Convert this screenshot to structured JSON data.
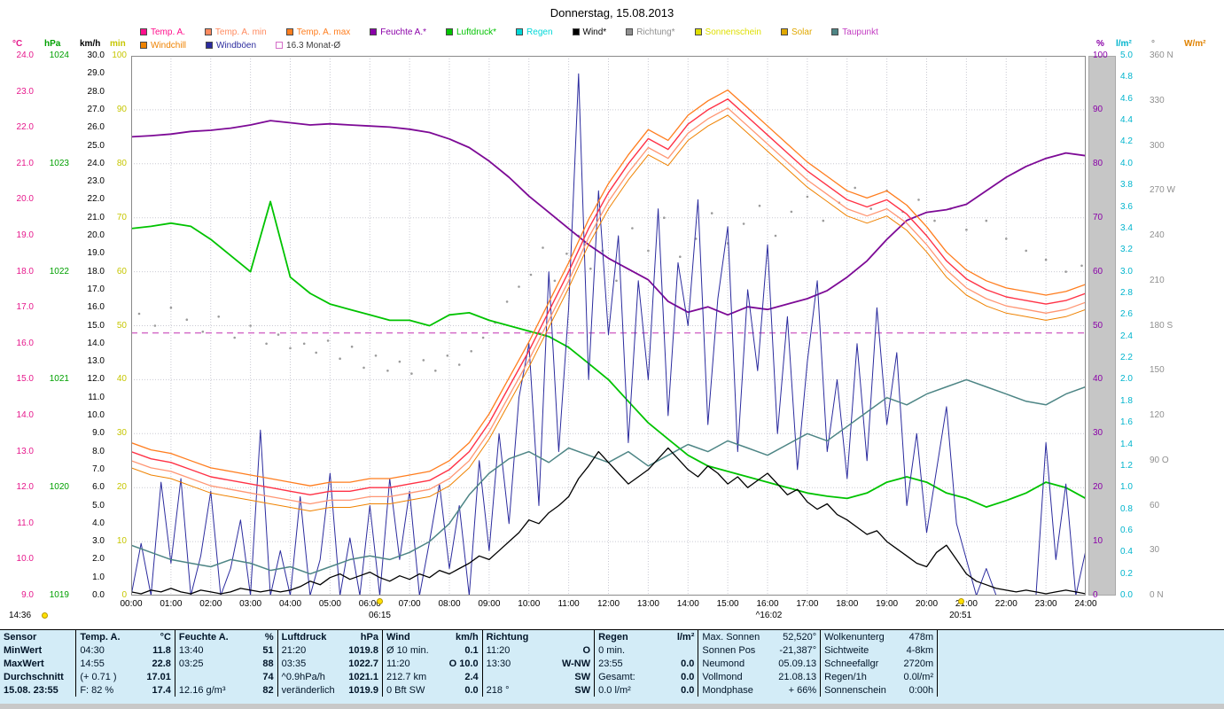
{
  "title": "Donnerstag, 15.08.2013",
  "legend": {
    "row1": [
      {
        "label": "Temp. A.",
        "color": "#ff0f8c"
      },
      {
        "label": "Temp. A. min",
        "color": "#ff8a5f"
      },
      {
        "label": "Temp. A. max",
        "color": "#ff7d1e"
      },
      {
        "label": "Feuchte A.*",
        "color": "#8a00a8"
      },
      {
        "label": "Luftdruck*",
        "color": "#00c300"
      },
      {
        "label": "Regen",
        "color": "#00d7d7"
      },
      {
        "label": "Wind*",
        "color": "#000000"
      },
      {
        "label": "Richtung*",
        "color": "#8f8f8f"
      },
      {
        "label": "Sonnenschein",
        "color": "#dede00"
      },
      {
        "label": "Solar",
        "color": "#e0a800"
      },
      {
        "label": "Taupunkt",
        "color": "#c23cc2",
        "box": "#4d8585"
      }
    ],
    "row2": [
      {
        "label": "Windchill",
        "color": "#ef8200"
      },
      {
        "label": "Windböen",
        "color": "#2b2b9e"
      },
      {
        "label": "16.3 Monat-Ø",
        "color": "#3c3c3c",
        "box": "#d46ec8",
        "outline": true
      }
    ]
  },
  "axes": {
    "left": [
      {
        "id": "temp",
        "header": "°C",
        "color": "#e6198c",
        "min": 9,
        "max": 24,
        "step": 1,
        "dec": 1
      },
      {
        "id": "hpa",
        "header": "hPa",
        "color": "#00a000",
        "min": 1019,
        "max": 1024,
        "step": 1,
        "dec": 0
      },
      {
        "id": "wind",
        "header": "km/h",
        "color": "#000000",
        "min": 0,
        "max": 30,
        "step": 1,
        "dec": 1
      },
      {
        "id": "sun",
        "header": "min",
        "color": "#c6c600",
        "min": 0,
        "max": 100,
        "step": 10,
        "dec": 0
      }
    ],
    "right": [
      {
        "id": "pct",
        "header": "%",
        "color": "#8a00a8",
        "min": 0,
        "max": 100,
        "step": 10,
        "dec": 0
      },
      {
        "id": "rain",
        "header": "l/m²",
        "color": "#00b4cd",
        "min": 0,
        "max": 5,
        "step": 0.2,
        "dec": 1
      },
      {
        "id": "dir",
        "header": "°",
        "color": "#8f8f8f",
        "labels": [
          "360 N",
          "330",
          "300",
          "270 W",
          "240",
          "210",
          "180 S",
          "150",
          "120",
          "90 O",
          "60",
          "30",
          "0 N"
        ]
      },
      {
        "id": "solar",
        "header": "W/m²",
        "color": "#e08200",
        "labels": []
      }
    ]
  },
  "x_axis": {
    "labels": [
      "00:00",
      "01:00",
      "02:00",
      "03:00",
      "04:00",
      "05:00",
      "06:00",
      "07:00",
      "08:00",
      "09:00",
      "10:00",
      "11:00",
      "12:00",
      "13:00",
      "14:00",
      "15:00",
      "16:00",
      "17:00",
      "18:00",
      "19:00",
      "20:00",
      "21:00",
      "22:00",
      "23:00",
      "24:00"
    ]
  },
  "markers": {
    "corner_time": "14:36",
    "sunrise": "06:15",
    "event": "^16:02",
    "sunset": "20:51"
  },
  "chart_data": {
    "type": "line",
    "title": "Donnerstag, 15.08.2013",
    "x_unit": "hours",
    "x_range": [
      0,
      24
    ],
    "grid": true,
    "monthly_avg_temp": 16.3,
    "axes_scales": {
      "temp": {
        "min": 9,
        "max": 24,
        "unit": "°C"
      },
      "hpa": {
        "min": 1019,
        "max": 1024,
        "unit": "hPa"
      },
      "wind": {
        "min": 0,
        "max": 30,
        "unit": "km/h"
      },
      "pct": {
        "min": 0,
        "max": 100,
        "unit": "%"
      },
      "rain": {
        "min": 0,
        "max": 5,
        "unit": "l/m²"
      },
      "sun": {
        "min": 0,
        "max": 100,
        "unit": "min"
      },
      "solar": {
        "min": 0,
        "max": 1000,
        "unit": "W/m²"
      },
      "dir": {
        "min": 0,
        "max": 360,
        "unit": "°"
      }
    },
    "series": [
      {
        "name": "Richtung",
        "axis": "dir",
        "color": "#9b9b9b",
        "type": "dots",
        "points": [
          [
            0.2,
            188
          ],
          [
            0.6,
            180
          ],
          [
            1.0,
            192
          ],
          [
            1.4,
            184
          ],
          [
            1.8,
            176
          ],
          [
            2.2,
            186
          ],
          [
            2.6,
            172
          ],
          [
            3.0,
            180
          ],
          [
            3.4,
            168
          ],
          [
            3.7,
            174
          ],
          [
            4.0,
            165
          ],
          [
            4.35,
            168
          ],
          [
            4.65,
            162
          ],
          [
            4.95,
            170
          ],
          [
            5.25,
            158
          ],
          [
            5.55,
            166
          ],
          [
            5.85,
            152
          ],
          [
            6.15,
            160
          ],
          [
            6.45,
            150
          ],
          [
            6.75,
            156
          ],
          [
            7.05,
            148
          ],
          [
            7.35,
            157
          ],
          [
            7.65,
            150
          ],
          [
            7.95,
            160
          ],
          [
            8.25,
            154
          ],
          [
            8.55,
            163
          ],
          [
            8.85,
            172
          ],
          [
            9.15,
            182
          ],
          [
            9.45,
            196
          ],
          [
            9.75,
            206
          ],
          [
            10.05,
            214
          ],
          [
            10.35,
            232
          ],
          [
            10.65,
            210
          ],
          [
            10.95,
            228
          ],
          [
            11.25,
            240
          ],
          [
            11.55,
            218
          ],
          [
            11.85,
            230
          ],
          [
            12.2,
            210
          ],
          [
            12.6,
            245
          ],
          [
            13.0,
            230
          ],
          [
            13.4,
            252
          ],
          [
            13.8,
            226
          ],
          [
            14.2,
            238
          ],
          [
            14.6,
            255
          ],
          [
            15.0,
            235
          ],
          [
            15.4,
            248
          ],
          [
            15.8,
            260
          ],
          [
            16.2,
            240
          ],
          [
            16.6,
            256
          ],
          [
            17.0,
            266
          ],
          [
            17.4,
            250
          ],
          [
            17.8,
            262
          ],
          [
            18.2,
            272
          ],
          [
            18.6,
            258
          ],
          [
            19.0,
            270
          ],
          [
            19.4,
            256
          ],
          [
            19.8,
            264
          ],
          [
            20.2,
            250
          ],
          [
            20.6,
            258
          ],
          [
            21.0,
            244
          ],
          [
            21.5,
            250
          ],
          [
            22.0,
            238
          ],
          [
            22.5,
            230
          ],
          [
            23.0,
            224
          ],
          [
            23.5,
            216
          ],
          [
            23.9,
            220
          ]
        ]
      },
      {
        "name": "Solar",
        "axis": "solar",
        "color": "#e0a800",
        "type": "line",
        "width": 1,
        "step_h": 24,
        "values": [
          0,
          0
        ]
      },
      {
        "name": "Sonnenschein",
        "axis": "sun",
        "color": "#dede00",
        "type": "line",
        "width": 1,
        "step_h": 24,
        "values": [
          0,
          0
        ]
      },
      {
        "name": "Regen",
        "axis": "rain",
        "color": "#00d7d7",
        "type": "line",
        "width": 2,
        "step_h": 24,
        "values": [
          0,
          0
        ]
      },
      {
        "name": "Luftdruck",
        "axis": "hpa",
        "color": "#00c300",
        "type": "line",
        "width": 1.8,
        "step_h": 0.5,
        "values": [
          1022.4,
          1022.42,
          1022.45,
          1022.42,
          1022.3,
          1022.15,
          1022.0,
          1022.65,
          1021.95,
          1021.8,
          1021.7,
          1021.65,
          1021.6,
          1021.55,
          1021.55,
          1021.5,
          1021.6,
          1021.62,
          1021.55,
          1021.5,
          1021.45,
          1021.4,
          1021.3,
          1021.15,
          1021.0,
          1020.8,
          1020.6,
          1020.45,
          1020.3,
          1020.2,
          1020.15,
          1020.1,
          1020.05,
          1020.0,
          1019.95,
          1019.92,
          1019.9,
          1019.95,
          1020.05,
          1020.1,
          1020.05,
          1019.95,
          1019.9,
          1019.82,
          1019.88,
          1019.95,
          1020.05,
          1020.0,
          1019.9
        ]
      },
      {
        "name": "Feuchte A.",
        "axis": "pct",
        "color": "#7d0a96",
        "type": "line",
        "width": 1.8,
        "step_h": 0.5,
        "values": [
          85,
          85.2,
          85.5,
          86,
          86.2,
          86.6,
          87.2,
          88,
          87.6,
          87.2,
          87.4,
          87.2,
          87,
          86.8,
          86.4,
          85.8,
          84.6,
          83,
          80.5,
          77.5,
          74,
          71,
          68,
          65,
          62.5,
          60.5,
          58.5,
          54.5,
          52.5,
          53.5,
          52,
          53.5,
          53,
          54,
          55,
          56.5,
          59,
          62,
          66,
          69.5,
          71,
          71.5,
          72.5,
          75,
          77.5,
          79.5,
          81,
          82,
          81.5
        ]
      },
      {
        "name": "Windböen",
        "axis": "wind",
        "color": "#2b2b9e",
        "type": "line",
        "width": 1,
        "step_h": 0.25,
        "values": [
          0,
          2.9,
          0,
          6.3,
          1.8,
          6.5,
          0,
          2.2,
          5.8,
          0,
          1.5,
          4.2,
          0,
          9.2,
          0,
          2.5,
          0,
          5.5,
          0,
          2.0,
          6.8,
          0,
          3.2,
          0,
          5.0,
          0,
          6.5,
          2.0,
          5.8,
          0,
          3.0,
          6.2,
          1.5,
          5.0,
          0,
          7.5,
          2.5,
          9.0,
          4.0,
          11.0,
          14.0,
          5.0,
          18.0,
          8.0,
          16.0,
          29.0,
          12.0,
          22.5,
          14.5,
          20.0,
          8.5,
          17.5,
          12.0,
          21.5,
          10.0,
          18.5,
          15.0,
          22.0,
          9.5,
          16.5,
          20.5,
          8.0,
          17.0,
          12.5,
          19.5,
          9.0,
          15.5,
          7.0,
          13.0,
          17.5,
          8.0,
          12.0,
          6.5,
          14.0,
          7.5,
          16.0,
          9.5,
          13.5,
          5.0,
          9.0,
          3.5,
          7.0,
          10.5,
          4.0,
          2.0,
          0,
          1.5,
          0,
          0,
          0,
          0,
          0,
          8.5,
          2.0,
          6.2,
          0,
          2.5
        ]
      },
      {
        "name": "Taupunkt",
        "axis": "temp",
        "color": "#4d8585",
        "type": "line",
        "width": 1.5,
        "step_h": 0.5,
        "values": [
          10.4,
          10.2,
          10.0,
          9.9,
          9.8,
          10.0,
          9.9,
          9.7,
          9.8,
          9.6,
          9.8,
          10.0,
          10.1,
          10.0,
          10.2,
          10.5,
          11.0,
          11.8,
          12.4,
          12.8,
          13.0,
          12.7,
          13.1,
          12.9,
          12.7,
          13.0,
          12.6,
          12.9,
          13.2,
          13.0,
          13.3,
          13.1,
          12.9,
          13.2,
          13.5,
          13.3,
          13.7,
          14.1,
          14.5,
          14.3,
          14.6,
          14.8,
          15.0,
          14.8,
          14.6,
          14.4,
          14.3,
          14.6,
          14.8
        ]
      },
      {
        "name": "Wind",
        "axis": "wind",
        "color": "#000000",
        "type": "line",
        "width": 1.3,
        "step_h": 0.25,
        "values": [
          0.2,
          0.1,
          0.3,
          0.2,
          0.4,
          0.2,
          0.1,
          0.3,
          0.2,
          0.1,
          0.2,
          0.4,
          0.3,
          0.2,
          0.3,
          0.2,
          0.3,
          0.5,
          0.8,
          0.6,
          1.0,
          1.2,
          0.9,
          1.1,
          1.3,
          1.0,
          0.8,
          1.1,
          0.9,
          1.2,
          1.0,
          1.4,
          1.2,
          1.5,
          1.8,
          2.2,
          2.0,
          2.5,
          3.0,
          3.5,
          4.2,
          4.0,
          4.6,
          5.0,
          5.5,
          6.5,
          7.2,
          8.0,
          7.4,
          6.8,
          6.2,
          6.6,
          7.0,
          7.6,
          8.2,
          7.6,
          7.0,
          6.6,
          7.2,
          6.8,
          6.2,
          6.6,
          6.0,
          6.4,
          6.8,
          6.2,
          5.6,
          5.9,
          5.2,
          4.8,
          5.1,
          4.5,
          4.2,
          3.8,
          3.4,
          3.6,
          3.0,
          2.6,
          2.2,
          1.8,
          1.6,
          2.4,
          2.8,
          2.0,
          1.2,
          0.8,
          0.6,
          0.4,
          0.3,
          0.2,
          0.3,
          0.2,
          0.1,
          0.2,
          0.3,
          0.2,
          0.1
        ]
      },
      {
        "name": "Windchill",
        "axis": "temp",
        "color": "#ef8200",
        "type": "line",
        "width": 1,
        "step_h": 0.5,
        "ref": "Temp. A.",
        "offset": -0.45
      },
      {
        "name": "Temp. A. min",
        "axis": "temp",
        "color": "#ff9673",
        "type": "line",
        "width": 1.3,
        "step_h": 0.5,
        "ref": "Temp. A.",
        "offset": -0.25
      },
      {
        "name": "Temp. A. max",
        "axis": "temp",
        "color": "#ff7d1e",
        "type": "line",
        "width": 1.3,
        "step_h": 0.5,
        "ref": "Temp. A.",
        "offset": 0.25
      },
      {
        "name": "Temp. A.",
        "axis": "temp",
        "color": "#ff3246",
        "type": "line",
        "width": 1.4,
        "step_h": 0.5,
        "values": [
          13.0,
          12.8,
          12.7,
          12.5,
          12.3,
          12.2,
          12.1,
          12.0,
          11.9,
          11.8,
          11.9,
          11.9,
          12.0,
          12.0,
          12.1,
          12.2,
          12.5,
          13.0,
          13.8,
          14.8,
          15.8,
          16.9,
          18.0,
          19.2,
          20.2,
          21.0,
          21.7,
          21.4,
          22.1,
          22.5,
          22.8,
          22.3,
          21.8,
          21.3,
          20.8,
          20.4,
          20.0,
          19.8,
          20.0,
          19.6,
          19.0,
          18.3,
          17.8,
          17.5,
          17.3,
          17.2,
          17.1,
          17.2,
          17.4
        ]
      }
    ]
  },
  "table": {
    "row_headers": [
      "Sensor",
      "MinWert",
      "MaxWert",
      "Durchschnitt",
      "15.08. 23:55"
    ],
    "groups": [
      {
        "name": "Temp. A.",
        "unit": "°C",
        "rows": [
          [
            "04:30",
            "11.8"
          ],
          [
            "14:55",
            "22.8"
          ],
          [
            "(+ 0.71 )",
            "17.01"
          ],
          [
            "F: 82 %",
            "17.4"
          ]
        ]
      },
      {
        "name": "Feuchte A.",
        "unit": "%",
        "rows": [
          [
            "13:40",
            "51"
          ],
          [
            "03:25",
            "88"
          ],
          [
            "",
            "74"
          ],
          [
            "12.16 g/m³",
            "82"
          ]
        ]
      },
      {
        "name": "Luftdruck",
        "unit": "hPa",
        "rows": [
          [
            "21:20",
            "1019.8"
          ],
          [
            "03:35",
            "1022.7"
          ],
          [
            "^0.9hPa/h",
            "1021.1"
          ],
          [
            "veränderlich",
            "1019.9"
          ]
        ]
      },
      {
        "name": "Wind",
        "unit": "km/h",
        "rows": [
          [
            "Ø 10 min.",
            "0.1"
          ],
          [
            "11:20",
            "O 10.0"
          ],
          [
            "212.7 km",
            "2.4"
          ],
          [
            "0 Bft SW",
            "0.0"
          ]
        ]
      },
      {
        "name": "Richtung",
        "unit": "",
        "rows": [
          [
            "11:20",
            "O"
          ],
          [
            "13:30",
            "W-NW"
          ],
          [
            "",
            "SW"
          ],
          [
            "218 °",
            "SW"
          ]
        ]
      },
      {
        "name": "Regen",
        "unit": "l/m²",
        "rows": [
          [
            "0 min.",
            ""
          ],
          [
            "23:55",
            "0.0"
          ],
          [
            "Gesamt:",
            "0.0"
          ],
          [
            "0.0 l/m²",
            "0.0"
          ]
        ]
      }
    ],
    "info_columns": [
      [
        [
          "Max. Sonnen",
          "52,520°"
        ],
        [
          "Sonnen Pos",
          "-21,387°"
        ],
        [
          "Neumond",
          "05.09.13"
        ],
        [
          "Vollmond",
          "21.08.13"
        ],
        [
          "Mondphase",
          "+ 66%"
        ]
      ],
      [
        [
          "Wolkenunterg",
          "478m"
        ],
        [
          "Sichtweite",
          "4-8km"
        ],
        [
          "Schneefallgr",
          "2720m"
        ],
        [
          "Regen/1h",
          "0.0l/m²"
        ],
        [
          "Sonnenschein",
          "0:00h"
        ]
      ]
    ]
  }
}
